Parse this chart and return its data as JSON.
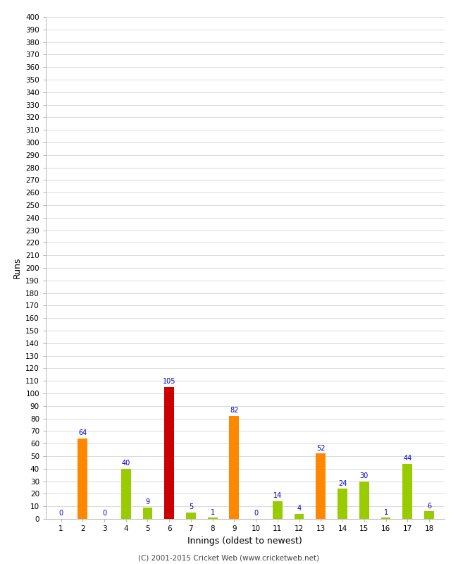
{
  "xlabel": "Innings (oldest to newest)",
  "ylabel": "Runs",
  "footer": "(C) 2001-2015 Cricket Web (www.cricketweb.net)",
  "innings": [
    1,
    2,
    3,
    4,
    5,
    6,
    7,
    8,
    9,
    10,
    11,
    12,
    13,
    14,
    15,
    16,
    17,
    18
  ],
  "values": [
    0,
    64,
    0,
    40,
    9,
    105,
    5,
    1,
    82,
    0,
    14,
    4,
    52,
    24,
    30,
    1,
    44,
    6
  ],
  "colors": [
    "#ff8800",
    "#ff8800",
    "#ff8800",
    "#99cc00",
    "#99cc00",
    "#cc0000",
    "#99cc00",
    "#99cc00",
    "#ff8800",
    "#ff8800",
    "#99cc00",
    "#99cc00",
    "#ff8800",
    "#99cc00",
    "#99cc00",
    "#99cc00",
    "#99cc00",
    "#99cc00"
  ],
  "ylim": [
    0,
    400
  ],
  "ytick_step": 10,
  "background_color": "#ffffff",
  "grid_color": "#cccccc",
  "label_color": "#0000cc",
  "bar_width": 0.45
}
